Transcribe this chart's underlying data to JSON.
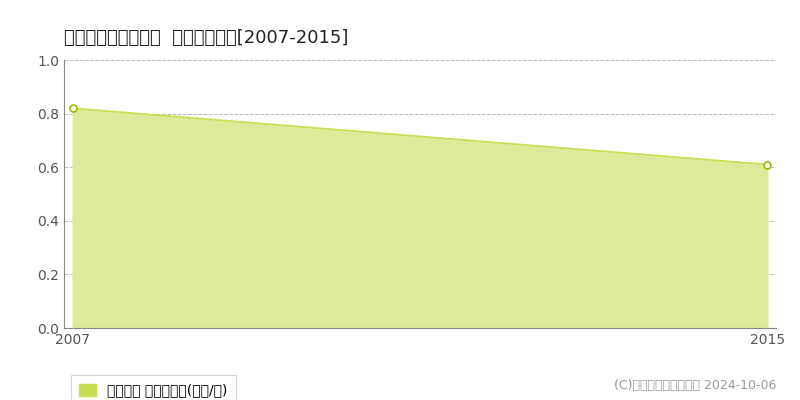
{
  "title": "上益城郡山都町米生  土地価格推移[2007-2015]",
  "x_values": [
    2007,
    2015
  ],
  "y_values": [
    0.82,
    0.61
  ],
  "ylim": [
    0,
    1.0
  ],
  "xlim": [
    2007,
    2015
  ],
  "yticks": [
    0,
    0.2,
    0.4,
    0.6,
    0.8,
    1.0
  ],
  "xticks": [
    2007,
    2015
  ],
  "line_color": "#c8de52",
  "fill_color": "#dcea9a",
  "marker_color": "#ffffff",
  "marker_edge_color": "#9db800",
  "grid_color": "#bbbbbb",
  "background_color": "#ffffff",
  "legend_label": "土地価格 平均坪単価(万円/坪)",
  "legend_marker_color": "#c8de52",
  "copyright_text": "(C)土地価格ドットコム 2024-10-06",
  "title_fontsize": 13,
  "tick_fontsize": 10,
  "legend_fontsize": 10,
  "copyright_fontsize": 9
}
